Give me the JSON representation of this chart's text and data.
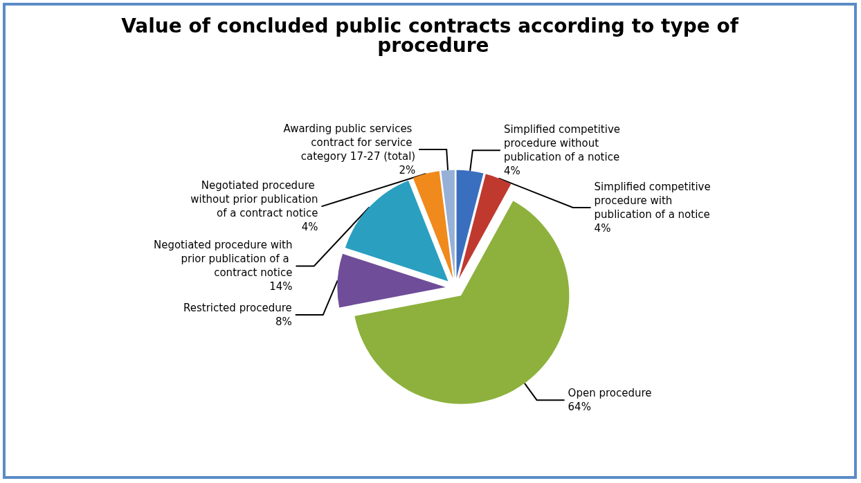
{
  "chart_data": {
    "type": "pie",
    "title": "Value of concluded public contracts according to type of procedure",
    "categories": [
      "Simplified competitive procedure without publication of a notice",
      "Simplified competitive procedure with publication of a notice",
      "Open procedure",
      "Restricted procedure",
      "Negotiated procedure with prior publication of a contract notice",
      "Negotiated procedure without prior publication of a contract notice",
      "Awarding public services contract for service category 17-27 (total)"
    ],
    "values": [
      4,
      4,
      64,
      8,
      14,
      4,
      2
    ],
    "colors": [
      "#3a6fc0",
      "#c0392f",
      "#8db13c",
      "#6f4d98",
      "#2a9fc0",
      "#f08a1d",
      "#96b0d8"
    ],
    "value_labels": [
      "4%",
      "4%",
      "64%",
      "8%",
      "14%",
      "4%",
      "2%"
    ],
    "legend": false
  }
}
